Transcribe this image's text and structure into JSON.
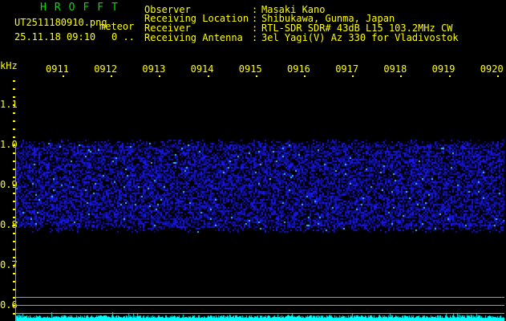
{
  "header": {
    "app_title": "HROFFT",
    "filename": "UT2511180910.png",
    "mode": "meteor",
    "datetime": "25.11.18 09:10",
    "count": "0 .."
  },
  "info": [
    {
      "label": "Observer",
      "value": "Masaki Kano"
    },
    {
      "label": "Receiving Location",
      "value": "Shibukawa, Gunma, Japan"
    },
    {
      "label": "Receiver",
      "value": "RTL-SDR SDR# 43dB L15 103.2MHz CW"
    },
    {
      "label": "Receiving Antenna",
      "value": "3el Yagi(V) Az 330 for Vladivostok"
    }
  ],
  "axis": {
    "y_unit": "kHz",
    "y_labels": [
      "1.1",
      "1.0",
      "0.9",
      "0.8",
      "0.7",
      "0.6"
    ],
    "time_labels": [
      "0911",
      "0912",
      "0913",
      "0914",
      "0915",
      "0916",
      "0917",
      "0918",
      "0919",
      "0920"
    ]
  },
  "colors": {
    "signal": "#1a1aff",
    "level": "#00ffff",
    "text": "#ffff00",
    "title": "#00e000"
  }
}
